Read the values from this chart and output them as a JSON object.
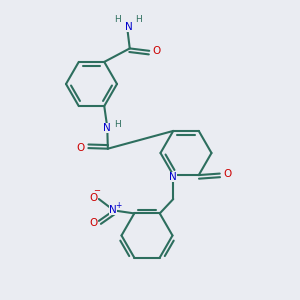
{
  "bg": "#eaecf2",
  "bc": "#2d6e5e",
  "nc": "#0000cc",
  "oc": "#cc0000",
  "lw": 1.5,
  "dbo": 0.012,
  "figsize": [
    3.0,
    3.0
  ],
  "dpi": 100,
  "xlim": [
    0,
    1
  ],
  "ylim": [
    0,
    1
  ]
}
